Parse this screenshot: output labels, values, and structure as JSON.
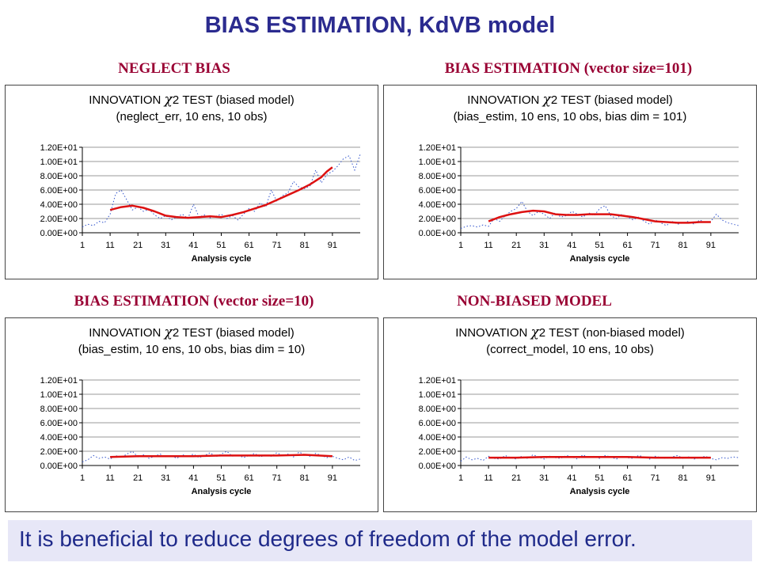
{
  "page": {
    "title": "BIAS ESTIMATION, KdVB model",
    "footer": "It is beneficial to reduce degrees of freedom of the model error."
  },
  "colors": {
    "title": "#2b2b8f",
    "panel_heading": "#990033",
    "mean_line": "#dd1111",
    "raw_series": "#3355cc",
    "footer_bg": "#e7e7f7"
  },
  "panels": [
    {
      "heading": "NEGLECT BIAS"
    },
    {
      "heading": "BIAS ESTIMATION (vector size=101)"
    },
    {
      "heading": "BIAS ESTIMATION (vector size=10)"
    },
    {
      "heading": "NON-BIASED MODEL"
    }
  ],
  "chart_data": [
    {
      "type": "line",
      "title_line1_prefix": "INNOVATION",
      "title_symbol": "χ",
      "title_line1_suffix": "2 TEST (biased model)",
      "title_line2": "(neglect_err,  10 ens, 10 obs)",
      "xlabel": "Analysis cycle",
      "x_ticks": [
        "1",
        "11",
        "21",
        "31",
        "41",
        "51",
        "61",
        "71",
        "81",
        "91"
      ],
      "y_ticks": [
        "0.00E+00",
        "2.00E+00",
        "4.00E+00",
        "6.00E+00",
        "8.00E+00",
        "1.00E+01",
        "1.20E+01"
      ],
      "xlim": [
        1,
        101
      ],
      "ylim": [
        0,
        12
      ],
      "series": [
        {
          "style": "raw",
          "x": [
            1,
            3,
            5,
            7,
            9,
            11,
            13,
            15,
            17,
            19,
            21,
            23,
            25,
            27,
            29,
            31,
            33,
            35,
            37,
            39,
            41,
            43,
            45,
            47,
            49,
            51,
            53,
            55,
            57,
            59,
            61,
            63,
            65,
            67,
            69,
            71,
            73,
            75,
            77,
            79,
            81,
            83,
            85,
            87,
            89,
            91,
            93,
            95,
            97,
            99,
            101
          ],
          "y": [
            0.8,
            1.2,
            1.0,
            1.6,
            1.4,
            2.6,
            5.5,
            6.0,
            4.6,
            3.2,
            3.6,
            3.0,
            3.3,
            2.5,
            2.0,
            2.4,
            1.8,
            2.2,
            2.6,
            2.0,
            4.0,
            2.2,
            2.5,
            2.1,
            2.3,
            2.6,
            2.0,
            2.4,
            1.8,
            2.6,
            3.4,
            3.0,
            4.2,
            3.6,
            6.0,
            4.4,
            5.2,
            5.6,
            7.2,
            6.4,
            6.2,
            6.6,
            8.8,
            7.0,
            8.2,
            8.6,
            9.4,
            10.4,
            10.8,
            8.8,
            11.0
          ]
        },
        {
          "style": "mean",
          "x": [
            11,
            15,
            19,
            23,
            27,
            31,
            35,
            39,
            43,
            47,
            51,
            55,
            59,
            63,
            67,
            71,
            75,
            79,
            83,
            87,
            89,
            91
          ],
          "y": [
            3.2,
            3.6,
            3.8,
            3.5,
            3.0,
            2.4,
            2.2,
            2.1,
            2.2,
            2.3,
            2.2,
            2.5,
            2.9,
            3.4,
            3.9,
            4.6,
            5.3,
            6.0,
            6.8,
            7.8,
            8.6,
            9.2
          ]
        }
      ]
    },
    {
      "type": "line",
      "title_line1_prefix": "INNOVATION",
      "title_symbol": "χ",
      "title_line1_suffix": "2 TEST (biased model)",
      "title_line2": "(bias_estim,  10 ens, 10 obs, bias dim = 101)",
      "xlabel": "Analysis cycle",
      "x_ticks": [
        "1",
        "11",
        "21",
        "31",
        "41",
        "51",
        "61",
        "71",
        "81",
        "91"
      ],
      "y_ticks": [
        "0.00E+00",
        "2.00E+00",
        "4.00E+00",
        "6.00E+00",
        "8.00E+00",
        "1.00E+01",
        "1.20E+01"
      ],
      "xlim": [
        1,
        101
      ],
      "ylim": [
        0,
        12
      ],
      "series": [
        {
          "style": "raw",
          "x": [
            1,
            3,
            5,
            7,
            9,
            11,
            13,
            15,
            17,
            19,
            21,
            23,
            25,
            27,
            29,
            31,
            33,
            35,
            37,
            39,
            41,
            43,
            45,
            47,
            49,
            51,
            53,
            55,
            57,
            59,
            61,
            63,
            65,
            67,
            69,
            71,
            73,
            75,
            77,
            79,
            81,
            83,
            85,
            87,
            89,
            91,
            93,
            95,
            97,
            99,
            101
          ],
          "y": [
            0.6,
            0.9,
            1.0,
            0.8,
            1.1,
            0.9,
            2.0,
            1.6,
            2.4,
            3.0,
            3.4,
            4.4,
            3.0,
            2.4,
            3.0,
            2.6,
            2.0,
            2.8,
            2.2,
            2.4,
            3.0,
            2.6,
            2.2,
            2.8,
            2.4,
            3.4,
            3.8,
            2.4,
            2.0,
            2.6,
            2.2,
            1.8,
            2.2,
            1.6,
            1.2,
            1.8,
            1.4,
            1.0,
            1.6,
            1.2,
            1.4,
            1.6,
            1.2,
            1.8,
            1.4,
            1.6,
            2.6,
            1.8,
            1.4,
            1.2,
            1.0
          ]
        },
        {
          "style": "mean",
          "x": [
            11,
            15,
            19,
            23,
            27,
            31,
            35,
            39,
            43,
            47,
            51,
            55,
            59,
            63,
            67,
            71,
            75,
            79,
            83,
            87,
            91
          ],
          "y": [
            1.6,
            2.2,
            2.6,
            2.9,
            3.1,
            3.0,
            2.6,
            2.5,
            2.5,
            2.6,
            2.6,
            2.6,
            2.4,
            2.2,
            1.9,
            1.6,
            1.5,
            1.4,
            1.4,
            1.5,
            1.5
          ]
        }
      ]
    },
    {
      "type": "line",
      "title_line1_prefix": "INNOVATION",
      "title_symbol": "χ",
      "title_line1_suffix": "2 TEST (biased model)",
      "title_line2": "(bias_estim,  10 ens, 10 obs, bias dim = 10)",
      "xlabel": "Analysis cycle",
      "x_ticks": [
        "1",
        "11",
        "21",
        "31",
        "41",
        "51",
        "61",
        "71",
        "81",
        "91"
      ],
      "y_ticks": [
        "0.00E+00",
        "2.00E+00",
        "4.00E+00",
        "6.00E+00",
        "8.00E+00",
        "1.00E+01",
        "1.20E+01"
      ],
      "xlim": [
        1,
        101
      ],
      "ylim": [
        0,
        12
      ],
      "series": [
        {
          "style": "raw",
          "x": [
            1,
            3,
            5,
            7,
            9,
            11,
            13,
            15,
            17,
            19,
            21,
            23,
            25,
            27,
            29,
            31,
            33,
            35,
            37,
            39,
            41,
            43,
            45,
            47,
            49,
            51,
            53,
            55,
            57,
            59,
            61,
            63,
            65,
            67,
            69,
            71,
            73,
            75,
            77,
            79,
            81,
            83,
            85,
            87,
            89,
            91,
            93,
            95,
            97,
            99,
            101
          ],
          "y": [
            0.5,
            0.8,
            1.4,
            1.0,
            1.2,
            0.9,
            1.4,
            1.1,
            1.6,
            2.0,
            1.2,
            1.5,
            1.0,
            1.3,
            1.6,
            1.2,
            1.4,
            1.0,
            1.5,
            1.3,
            1.6,
            1.1,
            1.4,
            1.8,
            1.2,
            1.6,
            2.0,
            1.3,
            1.5,
            1.1,
            1.4,
            1.7,
            1.2,
            1.5,
            1.3,
            1.8,
            1.4,
            1.6,
            1.2,
            1.9,
            1.5,
            1.3,
            1.7,
            1.4,
            1.1,
            1.3,
            1.0,
            0.8,
            1.2,
            0.7,
            0.9
          ]
        },
        {
          "style": "mean",
          "x": [
            11,
            21,
            31,
            41,
            51,
            61,
            71,
            81,
            91
          ],
          "y": [
            1.2,
            1.3,
            1.3,
            1.3,
            1.4,
            1.4,
            1.4,
            1.5,
            1.3
          ]
        }
      ]
    },
    {
      "type": "line",
      "title_line1_prefix": "INNOVATION",
      "title_symbol": "χ",
      "title_line1_suffix": "2 TEST (non-biased model)",
      "title_line2": "(correct_model,  10 ens, 10 obs)",
      "xlabel": "Analysis cycle",
      "x_ticks": [
        "1",
        "11",
        "21",
        "31",
        "41",
        "51",
        "61",
        "71",
        "81",
        "91"
      ],
      "y_ticks": [
        "0.00E+00",
        "2.00E+00",
        "4.00E+00",
        "6.00E+00",
        "8.00E+00",
        "1.00E+01",
        "1.20E+01"
      ],
      "xlim": [
        1,
        101
      ],
      "ylim": [
        0,
        12
      ],
      "series": [
        {
          "style": "raw",
          "x": [
            1,
            3,
            5,
            7,
            9,
            11,
            13,
            15,
            17,
            19,
            21,
            23,
            25,
            27,
            29,
            31,
            33,
            35,
            37,
            39,
            41,
            43,
            45,
            47,
            49,
            51,
            53,
            55,
            57,
            59,
            61,
            63,
            65,
            67,
            69,
            71,
            73,
            75,
            77,
            79,
            81,
            83,
            85,
            87,
            89,
            91,
            93,
            95,
            97,
            99,
            101
          ],
          "y": [
            0.6,
            1.2,
            0.8,
            1.0,
            0.7,
            1.3,
            1.0,
            0.9,
            1.4,
            1.1,
            0.9,
            1.3,
            1.0,
            1.5,
            1.2,
            0.9,
            1.3,
            1.1,
            1.0,
            1.4,
            1.2,
            0.9,
            1.5,
            1.1,
            1.3,
            1.0,
            1.4,
            1.2,
            0.9,
            1.3,
            1.1,
            1.0,
            1.4,
            1.2,
            0.9,
            1.3,
            1.1,
            1.0,
            1.2,
            1.4,
            1.0,
            1.2,
            0.9,
            1.1,
            1.3,
            1.0,
            0.8,
            1.1,
            1.0,
            1.2,
            1.1
          ]
        },
        {
          "style": "mean",
          "x": [
            11,
            21,
            31,
            41,
            51,
            61,
            71,
            81,
            91
          ],
          "y": [
            1.1,
            1.1,
            1.2,
            1.2,
            1.2,
            1.2,
            1.1,
            1.1,
            1.1
          ]
        }
      ]
    }
  ]
}
